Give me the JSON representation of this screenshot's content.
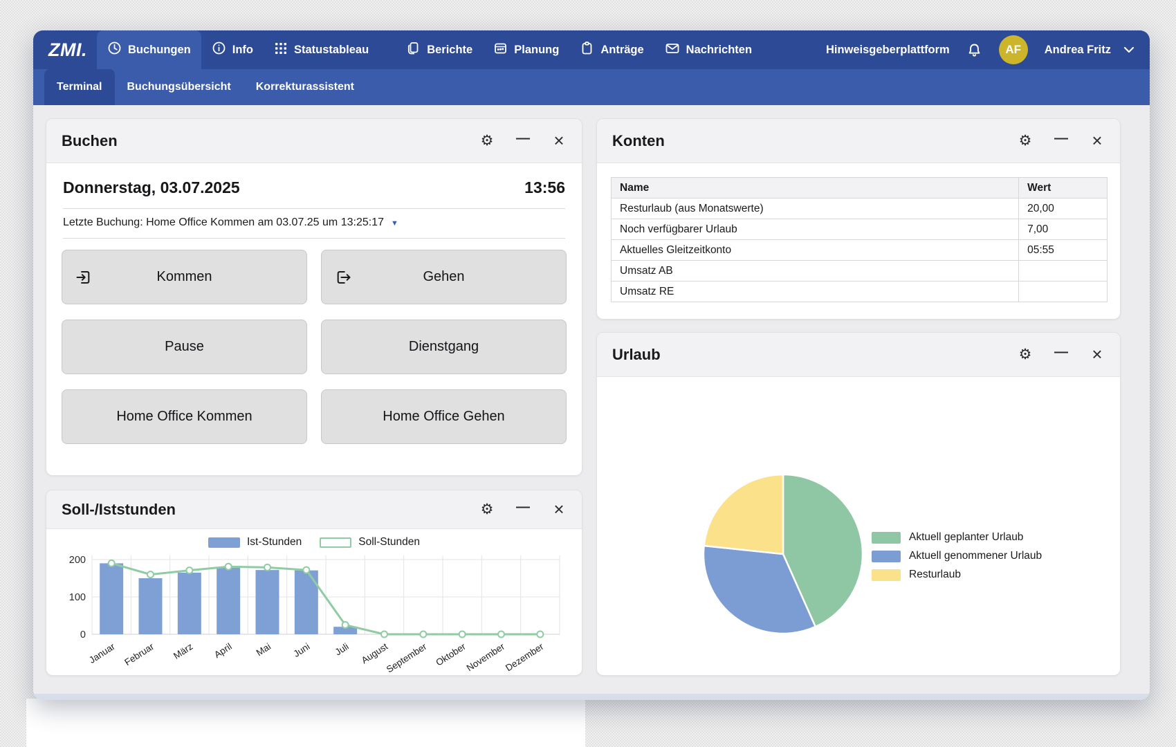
{
  "icons": {
    "gear": "⚙",
    "minimize": "—",
    "close": "×",
    "dropdown": "▼"
  },
  "colors": {
    "navbar": "#2d4a96",
    "subnav": "#3b5caa",
    "avatar_bg": "#cdb52b",
    "bar_blue": "#7fa0d4",
    "line_green": "#8fcba3",
    "pie_green": "#8fc7a4",
    "pie_blue": "#7c9dd4",
    "pie_yellow": "#fbe189"
  },
  "nav": {
    "logo": "ZMI.",
    "items": [
      {
        "label": "Buchungen",
        "icon": "clock-icon",
        "active": true
      },
      {
        "label": "Info",
        "icon": "info-icon",
        "active": false
      },
      {
        "label": "Statustableau",
        "icon": "grid-icon",
        "active": false
      },
      {
        "label": "Berichte",
        "icon": "pages-icon",
        "active": false
      },
      {
        "label": "Planung",
        "icon": "calendar-icon",
        "active": false
      },
      {
        "label": "Anträge",
        "icon": "clipboard-icon",
        "active": false
      },
      {
        "label": "Nachrichten",
        "icon": "envelope-icon",
        "active": false
      }
    ],
    "right": {
      "link": "Hinweisgeberplattform",
      "avatar_initials": "AF",
      "user_name": "Andrea Fritz"
    }
  },
  "subnav": {
    "items": [
      "Terminal",
      "Buchungsübersicht",
      "Korrekturassistent"
    ],
    "active_index": 0
  },
  "buchen": {
    "title": "Buchen",
    "date": "Donnerstag, 03.07.2025",
    "time": "13:56",
    "last_booking": "Letzte Buchung: Home Office Kommen am 03.07.25 um 13:25:17",
    "buttons": [
      {
        "label": "Kommen",
        "icon": "login-icon"
      },
      {
        "label": "Gehen",
        "icon": "logout-icon"
      },
      {
        "label": "Pause",
        "icon": null
      },
      {
        "label": "Dienstgang",
        "icon": null
      },
      {
        "label": "Home Office Kommen",
        "icon": null
      },
      {
        "label": "Home Office Gehen",
        "icon": null
      }
    ]
  },
  "konten": {
    "title": "Konten",
    "columns": [
      "Name",
      "Wert"
    ],
    "rows": [
      [
        "Resturlaub (aus Monatswerte)",
        "20,00"
      ],
      [
        "Noch verfügbarer Urlaub",
        "7,00"
      ],
      [
        "Aktuelles Gleitzeitkonto",
        "05:55"
      ],
      [
        "Umsatz AB",
        ""
      ],
      [
        "Umsatz RE",
        ""
      ]
    ]
  },
  "soll_ist": {
    "title": "Soll-/Iststunden"
  },
  "urlaub": {
    "title": "Urlaub"
  },
  "chart_data": [
    {
      "type": "bar",
      "title": "Soll-/Iststunden",
      "categories": [
        "Januar",
        "Februar",
        "März",
        "April",
        "Mai",
        "Juni",
        "Juli",
        "August",
        "September",
        "Oktober",
        "November",
        "Dezember"
      ],
      "series": [
        {
          "name": "Ist-Stunden",
          "type": "bar",
          "color": "#7fa0d4",
          "values": [
            190,
            150,
            165,
            178,
            172,
            171,
            20,
            0,
            0,
            0,
            0,
            0
          ]
        },
        {
          "name": "Soll-Stunden",
          "type": "line",
          "color": "#8fcba3",
          "values": [
            190,
            160,
            171,
            181,
            179,
            172,
            25,
            0,
            0,
            0,
            0,
            0
          ]
        }
      ],
      "xlabel": "",
      "ylabel": "",
      "ylim": [
        0,
        200
      ],
      "yticks": [
        0,
        100,
        200
      ],
      "grid": true,
      "legend_position": "top"
    },
    {
      "type": "pie",
      "title": "Urlaub",
      "labels": [
        "Aktuell geplanter Urlaub",
        "Aktuell genommener Urlaub",
        "Resturlaub"
      ],
      "values": [
        13,
        10,
        7
      ],
      "colors": [
        "#8fc7a4",
        "#7c9dd4",
        "#fbe189"
      ],
      "start_angle_deg": 0,
      "direction": "clockwise",
      "legend_position": "right"
    }
  ]
}
